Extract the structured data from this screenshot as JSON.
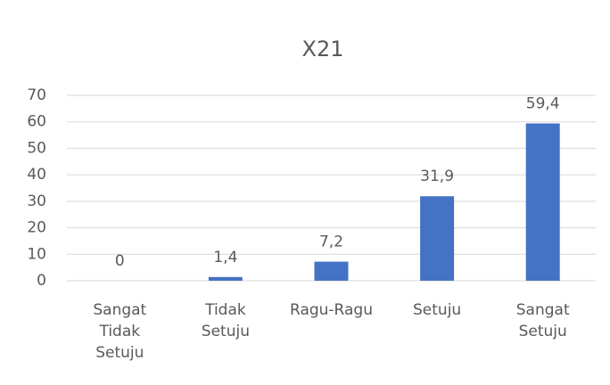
{
  "chart_data": {
    "type": "bar",
    "title": "X21",
    "categories": [
      "Sangat Tidak Setuju",
      "Tidak Setuju",
      "Ragu-Ragu",
      "Setuju",
      "Sangat Setuju"
    ],
    "values": [
      0,
      1.4,
      7.2,
      31.9,
      59.4
    ],
    "value_labels": [
      "0",
      "1,4",
      "7,2",
      "31,9",
      "59,4"
    ],
    "color": "#4472c4",
    "ylim": [
      0,
      70
    ],
    "yticks": [
      0,
      10,
      20,
      30,
      40,
      50,
      60,
      70
    ],
    "grid": true
  }
}
